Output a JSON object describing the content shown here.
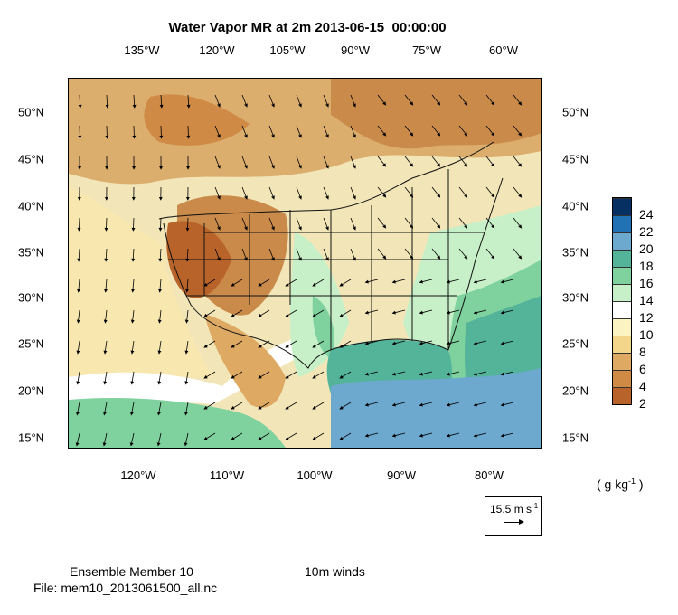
{
  "title": "Water Vapor MR at 2m 2013-06-15_00:00:00",
  "top_ticks": [
    "135°W",
    "120°W",
    "105°W",
    "90°W",
    "75°W",
    "60°W"
  ],
  "bottom_ticks": [
    "120°W",
    "110°W",
    "100°W",
    "90°W",
    "80°W"
  ],
  "left_ticks": [
    "50°N",
    "45°N",
    "40°N",
    "35°N",
    "30°N",
    "25°N",
    "20°N",
    "15°N"
  ],
  "right_ticks": [
    "50°N",
    "45°N",
    "40°N",
    "35°N",
    "30°N",
    "25°N",
    "20°N",
    "15°N"
  ],
  "colorbar": {
    "labels": [
      "24",
      "22",
      "20",
      "18",
      "16",
      "14",
      "12",
      "10",
      "8",
      "6",
      "4",
      "2"
    ],
    "colors": [
      "#053061",
      "#2171b5",
      "#6da8cf",
      "#54b49a",
      "#7fd19e",
      "#c8f0c8",
      "#ffffff",
      "#fcf3c2",
      "#f4d68a",
      "#deaa63",
      "#cf8a45",
      "#b8632a"
    ]
  },
  "units": "( g kg",
  "units_sup": "-1",
  "units_close": " )",
  "ref_vector": {
    "label": "15.5 m s",
    "label_sup": "-1"
  },
  "footer": {
    "member": "Ensemble Member 10",
    "winds": "10m winds",
    "file": "File: mem10_2013061500_all.nc"
  }
}
